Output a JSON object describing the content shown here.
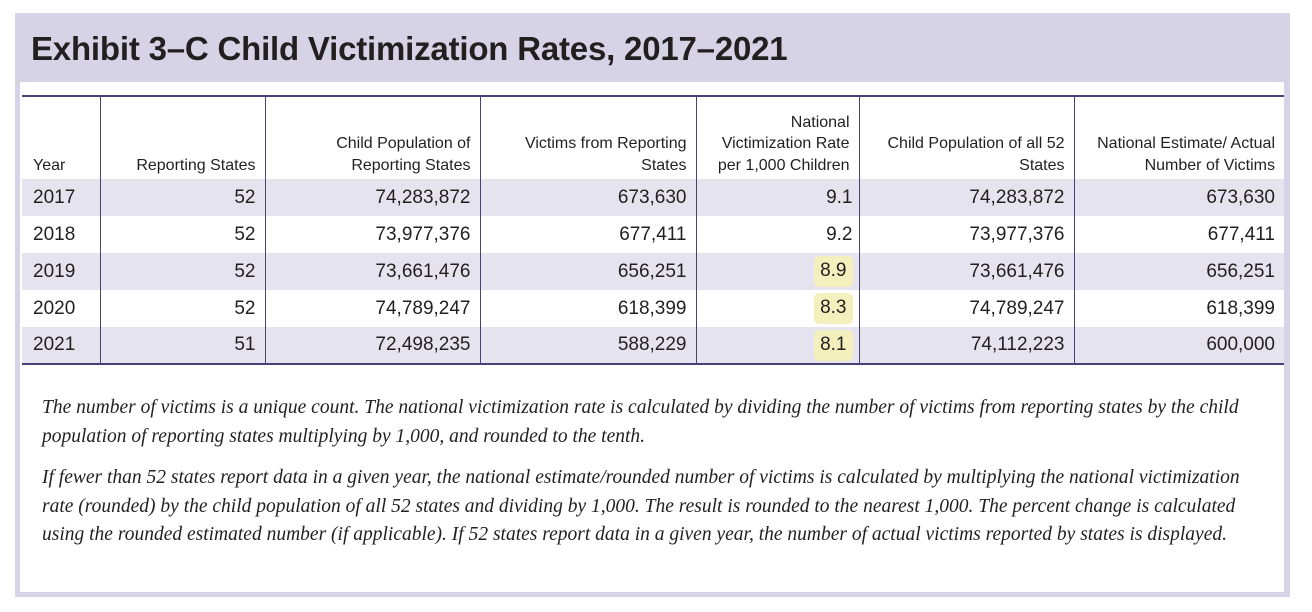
{
  "title": "Exhibit 3–C Child Victimization Rates, 2017–2021",
  "table": {
    "headers": [
      "Year",
      "Reporting States",
      "Child Population of Reporting States",
      "Victims from Reporting States",
      "National Victimization Rate per 1,000 Children",
      "Child Population of all 52 States",
      "National Estimate/ Actual Number of Victims"
    ],
    "rows": [
      {
        "year": "2017",
        "states": "52",
        "child_pop_reporting": "74,283,872",
        "victims_reporting": "673,630",
        "rate": "9.1",
        "rate_highlight": false,
        "child_pop_all": "74,283,872",
        "national_estimate": "673,630"
      },
      {
        "year": "2018",
        "states": "52",
        "child_pop_reporting": "73,977,376",
        "victims_reporting": "677,411",
        "rate": "9.2",
        "rate_highlight": false,
        "child_pop_all": "73,977,376",
        "national_estimate": "677,411"
      },
      {
        "year": "2019",
        "states": "52",
        "child_pop_reporting": "73,661,476",
        "victims_reporting": "656,251",
        "rate": "8.9",
        "rate_highlight": true,
        "child_pop_all": "73,661,476",
        "national_estimate": "656,251"
      },
      {
        "year": "2020",
        "states": "52",
        "child_pop_reporting": "74,789,247",
        "victims_reporting": "618,399",
        "rate": "8.3",
        "rate_highlight": true,
        "child_pop_all": "74,789,247",
        "national_estimate": "618,399"
      },
      {
        "year": "2021",
        "states": "51",
        "child_pop_reporting": "72,498,235",
        "victims_reporting": "588,229",
        "rate": "8.1",
        "rate_highlight": true,
        "child_pop_all": "74,112,223",
        "national_estimate": "600,000"
      }
    ]
  },
  "notes": [
    "The number of victims is a unique count. The national victimization rate is calculated by dividing the number of victims from reporting states by the child population of reporting states multiplying by 1,000, and rounded to the tenth.",
    "If fewer than 52 states report data in a given year, the national estimate/rounded number of victims is calculated by multiplying the national victimization rate (rounded) by the child population of all 52 states and dividing by 1,000. The result is rounded to the nearest 1,000. The percent change is calculated using the rounded estimated number (if applicable). If 52 states report data in a given year, the number of actual victims reported by states is displayed."
  ],
  "colors": {
    "header_band": "#d6d3e6",
    "rule": "#4a4178",
    "row_shade": "#e5e4ee",
    "highlight": "#f4f0bd"
  }
}
